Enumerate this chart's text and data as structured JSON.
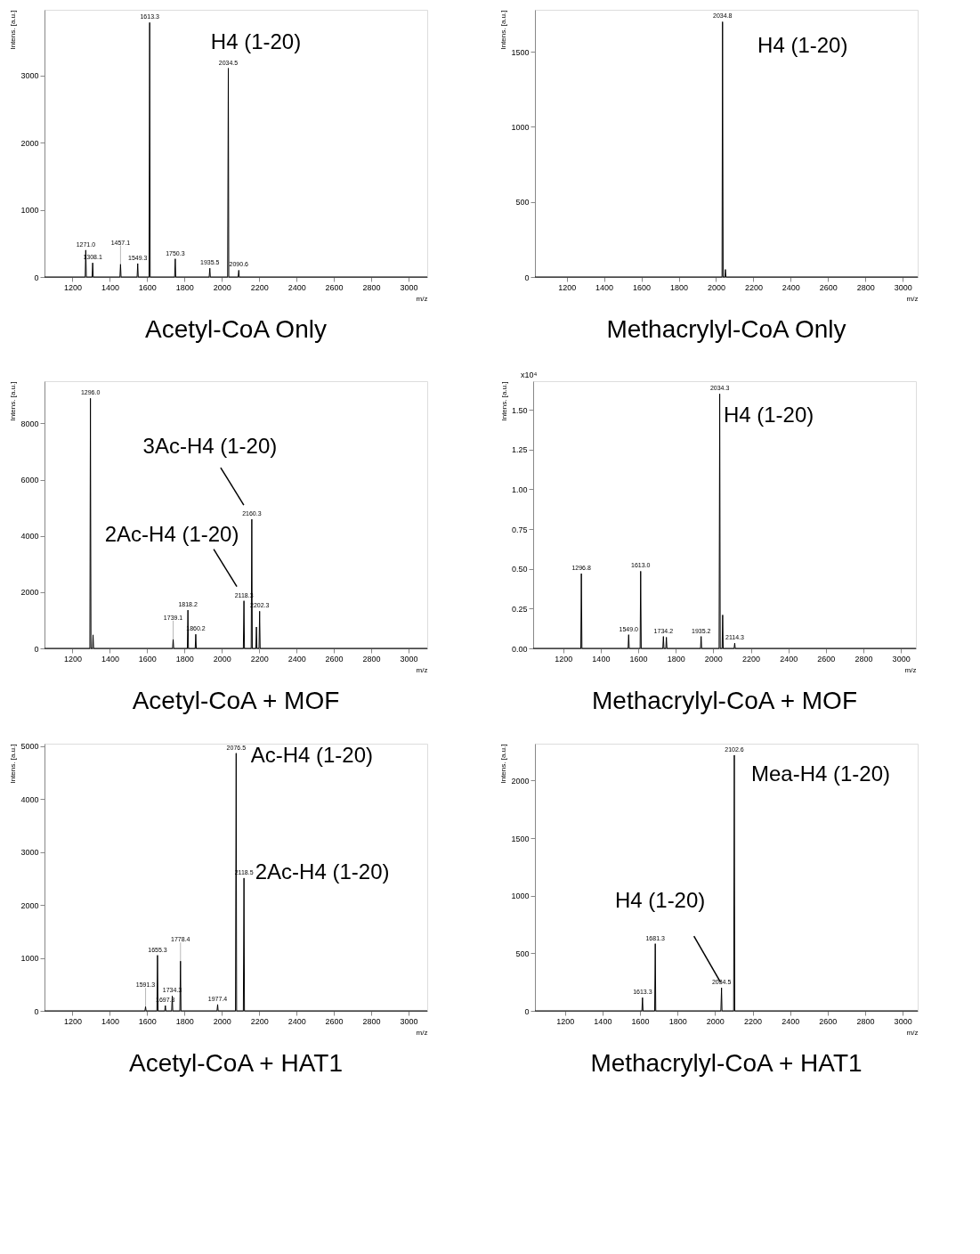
{
  "chart_data": [
    {
      "type": "line",
      "title": "Acetyl-CoA Only",
      "xlabel": "m/z",
      "ylabel": "Intens. [a.u.]",
      "color": "#000000",
      "xlim": [
        1050,
        3100
      ],
      "xticks": [
        1200,
        1400,
        1600,
        1800,
        2000,
        2200,
        2400,
        2600,
        2800,
        3000
      ],
      "ylim": [
        0,
        3980
      ],
      "yticks": [
        0,
        1000,
        2000,
        3000
      ],
      "x": [
        1050,
        1268,
        1271.0,
        1274,
        1305,
        1308.1,
        1311,
        1454,
        1457.1,
        1460,
        1546,
        1549.3,
        1552,
        1610,
        1613.3,
        1616,
        1747,
        1750.3,
        1753,
        1932,
        1935.5,
        1938,
        2031,
        2034.5,
        2037,
        2087,
        2090.6,
        2093,
        3100
      ],
      "values": [
        0,
        0,
        400,
        0,
        0,
        210,
        0,
        0,
        190,
        0,
        0,
        200,
        0,
        0,
        3790,
        0,
        0,
        270,
        0,
        0,
        130,
        0,
        0,
        3110,
        0,
        0,
        100,
        0,
        0
      ],
      "annotations": [
        {
          "text": "1271.0",
          "x": 1271.0,
          "y": 400
        },
        {
          "text": "1308.1",
          "x": 1308.1,
          "y": 210
        },
        {
          "text": "1457.1",
          "x": 1457.1,
          "y": 190
        },
        {
          "text": "1549.3",
          "x": 1549.3,
          "y": 200
        },
        {
          "text": "1613.3",
          "x": 1613.3,
          "y": 3790
        },
        {
          "text": "1750.3",
          "x": 1750.3,
          "y": 270
        },
        {
          "text": "1935.5",
          "x": 1935.5,
          "y": 130
        },
        {
          "text": "2034.5",
          "x": 2034.5,
          "y": 3110
        },
        {
          "text": "2090.6",
          "x": 2090.6,
          "y": 100
        },
        {
          "text": "H4 (1-20)",
          "x": 2034.5,
          "y": 3110
        }
      ]
    },
    {
      "type": "line",
      "title": "Methacrylyl-CoA Only",
      "xlabel": "m/z",
      "ylabel": "Intens. [a.u.]",
      "color": "#000000",
      "xlim": [
        1030,
        3080
      ],
      "xticks": [
        1200,
        1400,
        1600,
        1800,
        2000,
        2200,
        2400,
        2600,
        2800,
        3000
      ],
      "ylim": [
        0,
        1780
      ],
      "yticks": [
        0,
        500,
        1000,
        1500
      ],
      "x": [
        1030,
        2032,
        2034.8,
        2038,
        2047,
        2050,
        2053,
        3080
      ],
      "values": [
        0,
        0,
        1700,
        0,
        0,
        50,
        0,
        0
      ],
      "annotations": [
        {
          "text": "2034.8",
          "x": 2034.8,
          "y": 1700
        },
        {
          "text": "H4 (1-20)",
          "x": 2034.8,
          "y": 1700
        }
      ]
    },
    {
      "type": "line",
      "title": "Acetyl-CoA + MOF",
      "xlabel": "m/z",
      "ylabel": "Intens. [a.u.]",
      "color": "#000000",
      "xlim": [
        1050,
        3100
      ],
      "xticks": [
        1200,
        1400,
        1600,
        1800,
        2000,
        2200,
        2400,
        2600,
        2800,
        3000
      ],
      "ylim": [
        0,
        9500
      ],
      "yticks": [
        0,
        2000,
        4000,
        6000,
        8000
      ],
      "x": [
        1050,
        1293,
        1296.0,
        1299,
        1307,
        1310,
        1313,
        1736,
        1739.1,
        1742,
        1815,
        1818.2,
        1821,
        1857,
        1860.2,
        1863,
        2115,
        2118.3,
        2121,
        2157,
        2160.3,
        2163,
        2182,
        2185,
        2188,
        2199,
        2202.3,
        2205,
        3100
      ],
      "values": [
        0,
        0,
        8890,
        0,
        0,
        480,
        0,
        0,
        320,
        0,
        0,
        1360,
        0,
        0,
        500,
        0,
        0,
        1690,
        0,
        0,
        4590,
        0,
        0,
        760,
        0,
        0,
        1320,
        0,
        0
      ],
      "annotations": [
        {
          "text": "1296.0",
          "x": 1296.0,
          "y": 8890
        },
        {
          "text": "1739.1",
          "x": 1739.1,
          "y": 320
        },
        {
          "text": "1818.2",
          "x": 1818.2,
          "y": 1360
        },
        {
          "text": "1860.2",
          "x": 1860.2,
          "y": 500
        },
        {
          "text": "2118.3",
          "x": 2118.3,
          "y": 1690
        },
        {
          "text": "2160.3",
          "x": 2160.3,
          "y": 4590
        },
        {
          "text": "2202.3",
          "x": 2202.3,
          "y": 1320
        },
        {
          "text": "3Ac-H4 (1-20)",
          "x": 2160.3,
          "y": 4590
        },
        {
          "text": "2Ac-H4 (1-20)",
          "x": 2118.3,
          "y": 1690
        }
      ]
    },
    {
      "type": "line",
      "title": "Methacrylyl-CoA + MOF",
      "xlabel": "m/z",
      "ylabel": "Intens. [a.u.]",
      "color": "#000000",
      "xlim": [
        1040,
        3080
      ],
      "xticks": [
        1200,
        1400,
        1600,
        1800,
        2000,
        2200,
        2400,
        2600,
        2800,
        3000
      ],
      "ylim": [
        0,
        1.68
      ],
      "yticks": [
        {
          "value": 0,
          "label": "0.00"
        },
        {
          "value": 0.25,
          "label": "0.25"
        },
        {
          "value": 0.5,
          "label": "0.50"
        },
        {
          "value": 0.75,
          "label": "0.75"
        },
        {
          "value": 1,
          "label": "1.00"
        },
        {
          "value": 1.25,
          "label": "1.25"
        },
        {
          "value": 1.5,
          "label": "1.50"
        }
      ],
      "x": [
        1040,
        1294,
        1296.8,
        1300,
        1546,
        1549.0,
        1552,
        1610,
        1613.0,
        1616,
        1731,
        1734.2,
        1737,
        1747,
        1750,
        1753,
        1932,
        1935.2,
        1938,
        2031,
        2034.3,
        2037,
        2047,
        2050,
        2053,
        2111,
        2114.3,
        2117,
        3080
      ],
      "values": [
        0,
        0,
        0.47,
        0,
        0,
        0.086,
        0,
        0,
        0.485,
        0,
        0,
        0.075,
        0,
        0,
        0.07,
        0,
        0,
        0.075,
        0,
        0,
        1.6,
        0,
        0,
        0.21,
        0,
        0,
        0.033,
        0,
        0
      ],
      "annotations": [
        "x10⁴",
        {
          "text": "1296.8",
          "x": 1296.8,
          "y": 0.47
        },
        {
          "text": "1549.0",
          "x": 1549.0,
          "y": 0.086
        },
        {
          "text": "1613.0",
          "x": 1613.0,
          "y": 0.485
        },
        {
          "text": "1734.2",
          "x": 1734.2,
          "y": 0.075
        },
        {
          "text": "1935.2",
          "x": 1935.2,
          "y": 0.075
        },
        {
          "text": "2034.3",
          "x": 2034.3,
          "y": 1.6
        },
        {
          "text": "2114.3",
          "x": 2114.3,
          "y": 0.033
        },
        {
          "text": "H4 (1-20)",
          "x": 2034.3,
          "y": 1.6
        }
      ]
    },
    {
      "type": "line",
      "title": "Acetyl-CoA + HAT1",
      "xlabel": "m/z",
      "ylabel": "Intens. [a.u.]",
      "color": "#000000",
      "xlim": [
        1050,
        3100
      ],
      "xticks": [
        1200,
        1400,
        1600,
        1800,
        2000,
        2200,
        2400,
        2600,
        2800,
        3000
      ],
      "ylim": [
        0,
        5050
      ],
      "yticks": [
        0,
        1000,
        2000,
        3000,
        4000,
        5000
      ],
      "x": [
        1050,
        1588,
        1591.3,
        1594,
        1652,
        1655.3,
        1658,
        1694,
        1697.3,
        1700,
        1731,
        1734.3,
        1737,
        1775,
        1778.4,
        1781,
        1974,
        1977.4,
        1980,
        2073,
        2076.5,
        2079,
        2115,
        2118.5,
        2121,
        3100
      ],
      "values": [
        0,
        0,
        80,
        0,
        0,
        1050,
        0,
        0,
        100,
        0,
        0,
        280,
        0,
        0,
        940,
        0,
        0,
        120,
        0,
        0,
        4870,
        0,
        0,
        2510,
        0,
        0
      ],
      "annotations": [
        {
          "text": "1591.3",
          "x": 1591.3,
          "y": 80
        },
        {
          "text": "1655.3",
          "x": 1655.3,
          "y": 1050
        },
        {
          "text": "1697.3",
          "x": 1697.3,
          "y": 100
        },
        {
          "text": "1734.3",
          "x": 1734.3,
          "y": 280
        },
        {
          "text": "1778.4",
          "x": 1778.4,
          "y": 940
        },
        {
          "text": "1977.4",
          "x": 1977.4,
          "y": 120
        },
        {
          "text": "2076.5",
          "x": 2076.5,
          "y": 4870
        },
        {
          "text": "2118.5",
          "x": 2118.5,
          "y": 2510
        },
        {
          "text": "Ac-H4 (1-20)",
          "x": 2076.5,
          "y": 4870
        },
        {
          "text": "2Ac-H4 (1-20)",
          "x": 2118.5,
          "y": 2510
        }
      ]
    },
    {
      "type": "line",
      "title": "Methacrylyl-CoA + HAT1",
      "xlabel": "m/z",
      "ylabel": "Intens. [a.u.]",
      "color": "#000000",
      "xlim": [
        1040,
        3080
      ],
      "xticks": [
        1200,
        1400,
        1600,
        1800,
        2000,
        2200,
        2400,
        2600,
        2800,
        3000
      ],
      "ylim": [
        0,
        2320
      ],
      "yticks": [
        0,
        500,
        1000,
        1500,
        2000
      ],
      "x": [
        1040,
        1610,
        1613.3,
        1616,
        1678,
        1681.3,
        1684,
        2031,
        2034.5,
        2037,
        2099,
        2102.6,
        2105,
        3080
      ],
      "values": [
        0,
        0,
        115,
        0,
        0,
        583,
        0,
        0,
        200,
        0,
        0,
        2220,
        0,
        0
      ],
      "annotations": [
        {
          "text": "1613.3",
          "x": 1613.3,
          "y": 115
        },
        {
          "text": "1681.3",
          "x": 1681.3,
          "y": 583
        },
        {
          "text": "2034.5",
          "x": 2034.5,
          "y": 200
        },
        {
          "text": "2102.6",
          "x": 2102.6,
          "y": 2220
        },
        {
          "text": "Mea-H4 (1-20)",
          "x": 2102.6,
          "y": 2220
        },
        {
          "text": "H4 (1-20)",
          "x": 2034.5,
          "y": 200
        }
      ]
    }
  ]
}
